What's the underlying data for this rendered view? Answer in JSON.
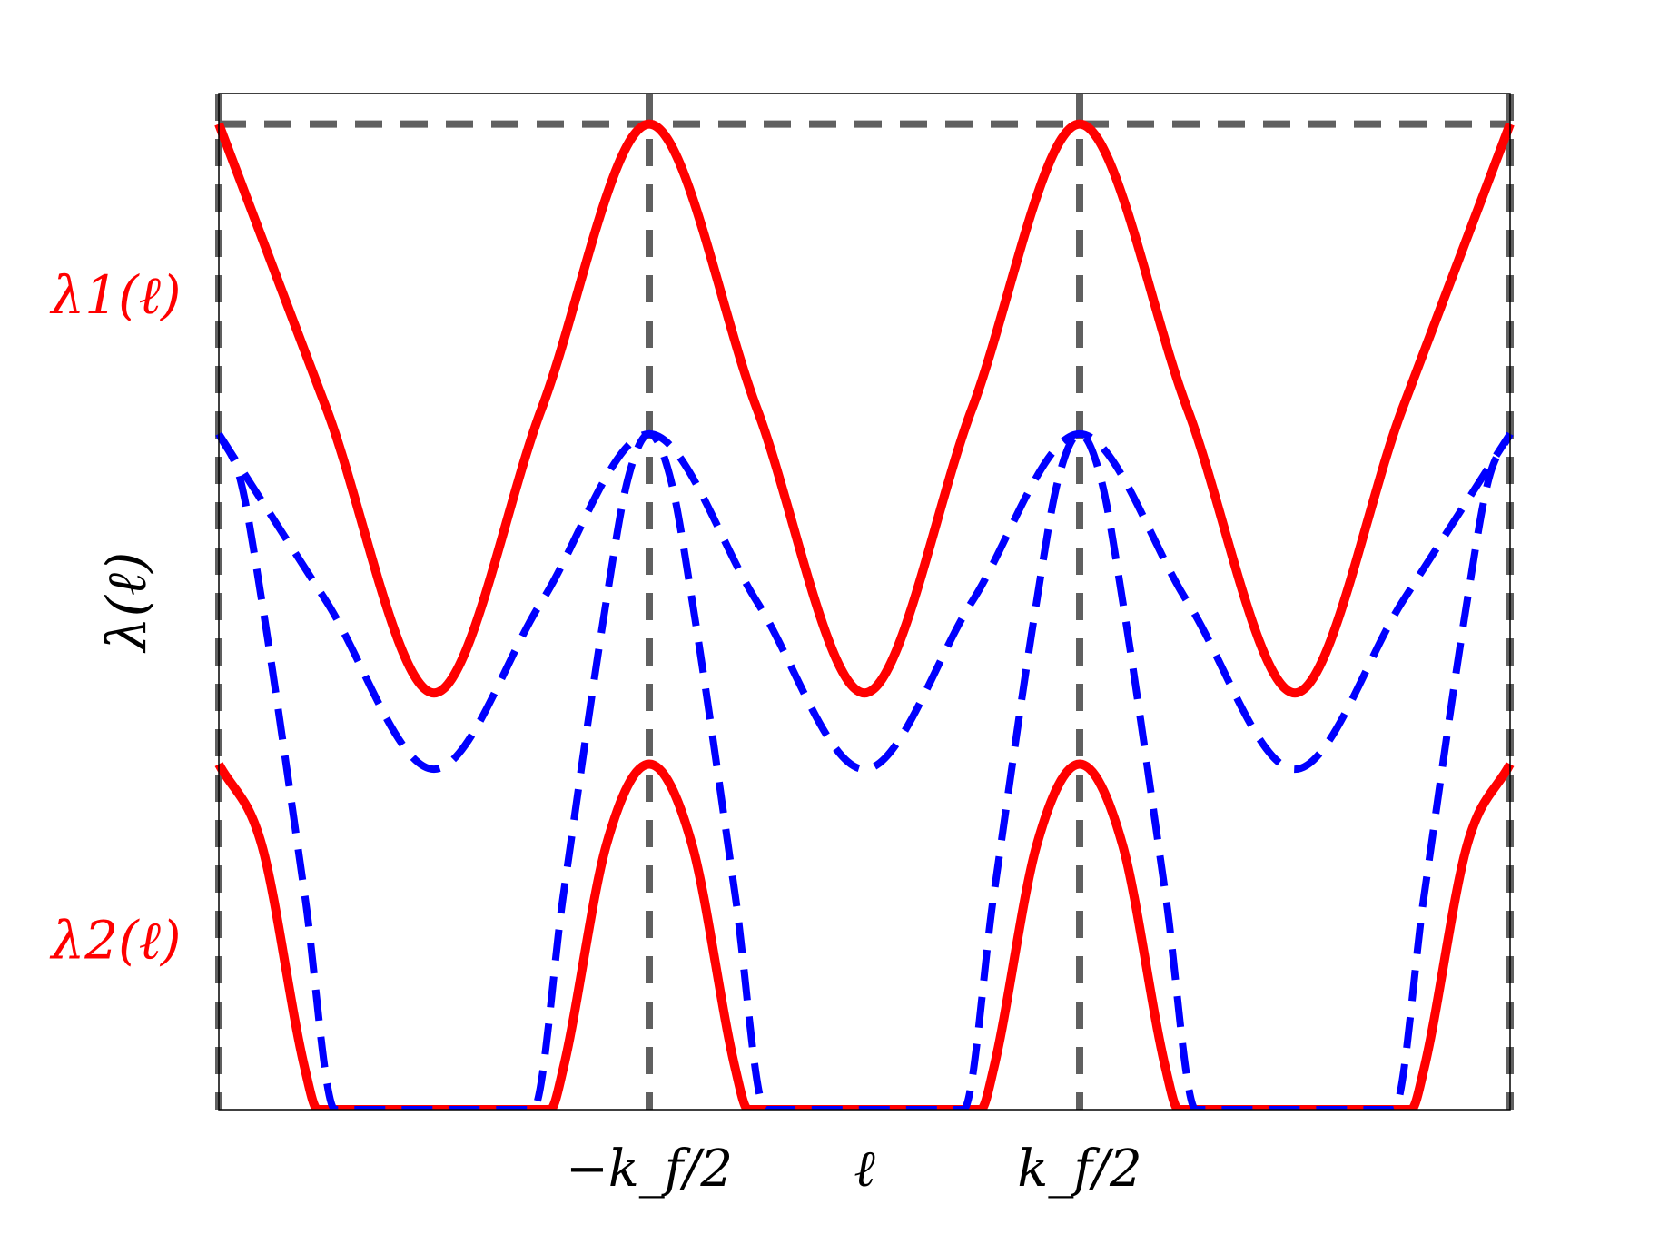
{
  "chart_data": {
    "type": "line",
    "xlabel": "ℓ",
    "ylabel": "λ(ℓ)",
    "x_ticks": [
      {
        "x": -0.5,
        "label": "−k_f/2"
      },
      {
        "x": 0.5,
        "label": "k_f/2"
      }
    ],
    "xlim": [
      -1.5,
      1.5
    ],
    "ylim": [
      0,
      1
    ],
    "vertical_reference_lines": [
      -1.5,
      -0.5,
      0.5,
      1.5
    ],
    "horizontal_reference_line": 0.97,
    "band_labels": [
      {
        "label": "λ1(ℓ)",
        "y": 0.8
      },
      {
        "label": "λ2(ℓ)",
        "y": 0.165
      }
    ],
    "series": [
      {
        "style": "solid",
        "color": "#ff0000",
        "role": "upper band",
        "x": [
          -1.5,
          -1.25,
          -1.0,
          -0.75,
          -0.5,
          -0.25,
          0.0,
          0.25,
          0.5,
          0.75,
          1.0,
          1.25,
          1.5
        ],
        "values": [
          0.97,
          0.69,
          0.41,
          0.69,
          0.97,
          0.69,
          0.41,
          0.69,
          0.97,
          0.69,
          0.41,
          0.69,
          0.97
        ]
      },
      {
        "style": "solid",
        "color": "#ff0000",
        "role": "lower band",
        "x": [
          -1.5,
          -1.4,
          -1.3,
          -1.27,
          -0.73,
          -0.7,
          -0.6,
          -0.5,
          -0.4,
          -0.3,
          -0.27,
          0.27,
          0.3,
          0.4,
          0.5,
          0.6,
          0.7,
          0.73,
          1.27,
          1.3,
          1.4,
          1.5
        ],
        "values": [
          0.34,
          0.26,
          0.04,
          0.0,
          0.0,
          0.04,
          0.26,
          0.34,
          0.26,
          0.04,
          0.0,
          0.0,
          0.04,
          0.26,
          0.34,
          0.26,
          0.04,
          0.0,
          0.0,
          0.04,
          0.26,
          0.34
        ]
      },
      {
        "style": "dashed",
        "color": "#0000ff",
        "role": "upper band (dashed)",
        "x": [
          -1.5,
          -1.25,
          -1.0,
          -0.75,
          -0.5,
          -0.25,
          0.0,
          0.25,
          0.5,
          0.75,
          1.0,
          1.25,
          1.5
        ],
        "values": [
          0.665,
          0.5,
          0.335,
          0.5,
          0.665,
          0.5,
          0.335,
          0.5,
          0.665,
          0.5,
          0.335,
          0.5,
          0.665
        ]
      },
      {
        "style": "dashed",
        "color": "#0000ff",
        "role": "lower band (dashed)",
        "x": [
          -1.5,
          -1.45,
          -1.4,
          -1.3,
          -1.23,
          -0.77,
          -0.7,
          -0.6,
          -0.55,
          -0.5,
          -0.45,
          -0.4,
          -0.3,
          -0.23,
          0.23,
          0.3,
          0.4,
          0.45,
          0.5,
          0.55,
          0.6,
          0.7,
          0.77,
          1.23,
          1.3,
          1.4,
          1.45,
          1.5
        ],
        "values": [
          0.665,
          0.62,
          0.5,
          0.21,
          0.0,
          0.0,
          0.21,
          0.5,
          0.62,
          0.665,
          0.62,
          0.5,
          0.21,
          0.0,
          0.0,
          0.21,
          0.5,
          0.62,
          0.665,
          0.62,
          0.5,
          0.21,
          0.0,
          0.0,
          0.21,
          0.5,
          0.62,
          0.665
        ]
      }
    ]
  }
}
